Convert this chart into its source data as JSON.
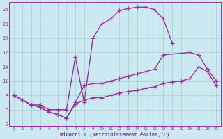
{
  "bg_color": "#cce8f0",
  "line_color": "#993399",
  "grid_color": "#aad4e0",
  "xlabel": "Windchill (Refroidissement éolien,°C)",
  "xlim": [
    -0.5,
    23.5
  ],
  "ylim": [
    1.5,
    27.5
  ],
  "yticks": [
    2,
    5,
    8,
    11,
    14,
    17,
    20,
    23,
    26
  ],
  "xticks": [
    0,
    1,
    2,
    3,
    4,
    5,
    6,
    7,
    8,
    9,
    10,
    11,
    12,
    13,
    14,
    15,
    16,
    17,
    18,
    19,
    20,
    21,
    22,
    23
  ],
  "line1_x": [
    0,
    1,
    2,
    3,
    4,
    5,
    6,
    7,
    8,
    9,
    10,
    11,
    12,
    13,
    14,
    15,
    16,
    17,
    18
  ],
  "line1_y": [
    8,
    7,
    6,
    6,
    5,
    5,
    5,
    16,
    6.5,
    20,
    23,
    24,
    25.8,
    26.2,
    26.5,
    26.5,
    26.0,
    24.0,
    19.0
  ],
  "line2_x": [
    0,
    2,
    3,
    4,
    5,
    6,
    7,
    8,
    9,
    10,
    11,
    12,
    13,
    14,
    15,
    16,
    17,
    20,
    21,
    22,
    23
  ],
  "line2_y": [
    8,
    6,
    5.5,
    4.5,
    4,
    3.2,
    6.5,
    10,
    10.5,
    10.5,
    11,
    11.5,
    12,
    12.5,
    13,
    13.5,
    16.5,
    17,
    16.5,
    13.5,
    11
  ],
  "line3_x": [
    0,
    2,
    3,
    4,
    5,
    6,
    7,
    8,
    9,
    10,
    11,
    12,
    13,
    14,
    15,
    16,
    17,
    18,
    19,
    20,
    21,
    22,
    23
  ],
  "line3_y": [
    8,
    6,
    5.5,
    4.5,
    4,
    3.2,
    6.2,
    7,
    7.5,
    7.5,
    8,
    8.5,
    8.8,
    9,
    9.5,
    9.8,
    10.5,
    10.8,
    11,
    11.5,
    14,
    13,
    10
  ],
  "marker": "+",
  "markersize": 4,
  "linewidth": 1.0
}
